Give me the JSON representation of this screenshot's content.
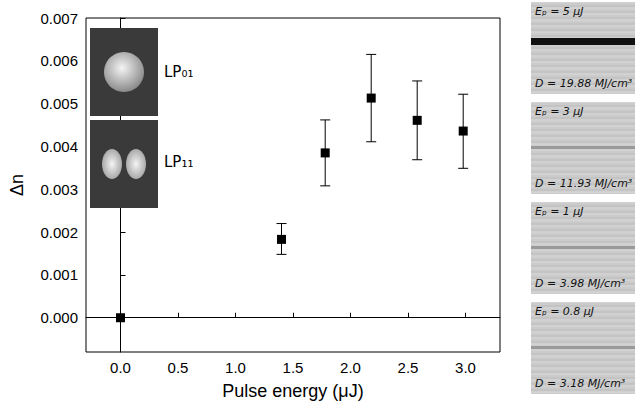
{
  "chart_data": {
    "type": "scatter",
    "x_label": "Pulse energy (μJ)",
    "y_label": "Δn",
    "x": [
      0,
      1.4,
      1.78,
      2.18,
      2.58,
      2.98
    ],
    "values": [
      0,
      0.00183,
      0.00385,
      0.00513,
      0.00461,
      0.00436
    ],
    "error_low": [
      null,
      0.00148,
      0.00308,
      0.00411,
      0.00369,
      0.00349
    ],
    "error_high": [
      null,
      0.0022,
      0.00462,
      0.00615,
      0.00553,
      0.00522
    ],
    "color": "#000000",
    "marker": "square",
    "xlim": [
      -0.3,
      3.3
    ],
    "xticks": [
      {
        "value": 0,
        "label": "0.0"
      },
      {
        "value": 0.5,
        "label": "0.5"
      },
      {
        "value": 1,
        "label": "1.0"
      },
      {
        "value": 1.5,
        "label": "1.5"
      },
      {
        "value": 2,
        "label": "2.0"
      },
      {
        "value": 2.5,
        "label": "2.5"
      },
      {
        "value": 3,
        "label": "3.0"
      }
    ],
    "ylim": [
      -0.0008,
      0.007
    ],
    "yticks": [
      {
        "value": 0,
        "label": "0.000"
      },
      {
        "value": 0.001,
        "label": "0.001"
      },
      {
        "value": 0.002,
        "label": "0.002"
      },
      {
        "value": 0.003,
        "label": "0.003"
      },
      {
        "value": 0.004,
        "label": "0.004"
      },
      {
        "value": 0.005,
        "label": "0.005"
      },
      {
        "value": 0.006,
        "label": "0.006"
      },
      {
        "value": 0.007,
        "label": "0.007"
      }
    ],
    "grid": false,
    "annotations": [
      "LP₀₁",
      "LP₁₁"
    ]
  },
  "side_panels": [
    {
      "energy_label": "Eₚ = 5 μJ",
      "fluence_label": "D = 19.88 MJ/cm³"
    },
    {
      "energy_label": "Eₚ = 3 μJ",
      "fluence_label": "D = 11.93 MJ/cm³"
    },
    {
      "energy_label": "Eₚ = 1 μJ",
      "fluence_label": "D = 3.98 MJ/cm³"
    },
    {
      "energy_label": "Eₚ = 0.8 μJ",
      "fluence_label": "D = 3.18 MJ/cm³"
    }
  ]
}
